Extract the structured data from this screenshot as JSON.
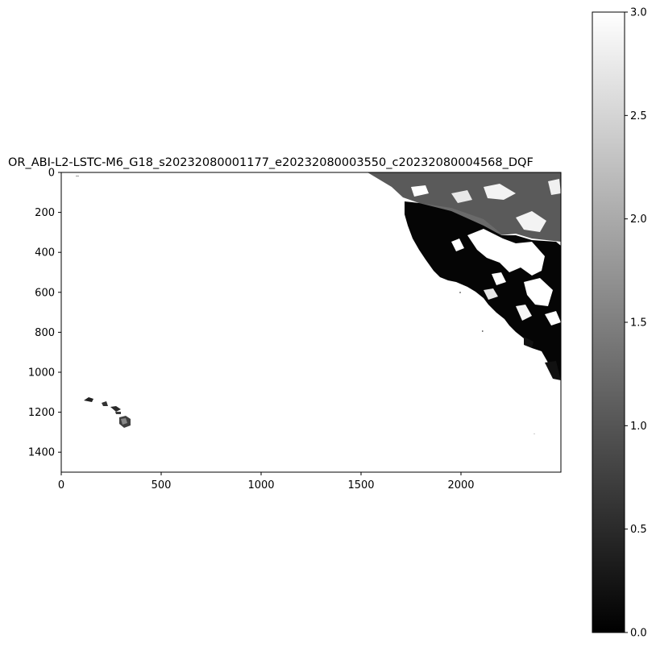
{
  "chart_data": [
    {
      "type": "heatmap",
      "title": "OR_ABI-L2-LSTC-M6_G18_s20232080001177_e20232080003550_c20232080004568_DQF",
      "colormap": "gray",
      "x_ticks": [
        "0",
        "500",
        "1000",
        "1500",
        "2000"
      ],
      "x_tick_values": [
        0,
        500,
        1000,
        1500,
        2000
      ],
      "y_ticks": [
        "0",
        "200",
        "400",
        "600",
        "800",
        "1000",
        "1200",
        "1400"
      ],
      "y_tick_values": [
        0,
        200,
        400,
        600,
        800,
        1000,
        1200,
        1400
      ],
      "xlim": [
        0,
        2500
      ],
      "ylim": [
        1500,
        0
      ],
      "colorbar": {
        "vmin": 0.0,
        "vmax": 3.0,
        "ticks": [
          "0.0",
          "0.5",
          "1.0",
          "1.5",
          "2.0",
          "2.5",
          "3.0"
        ],
        "tick_values": [
          0.0,
          0.5,
          1.0,
          1.5,
          2.0,
          2.5,
          3.0
        ]
      }
    }
  ]
}
